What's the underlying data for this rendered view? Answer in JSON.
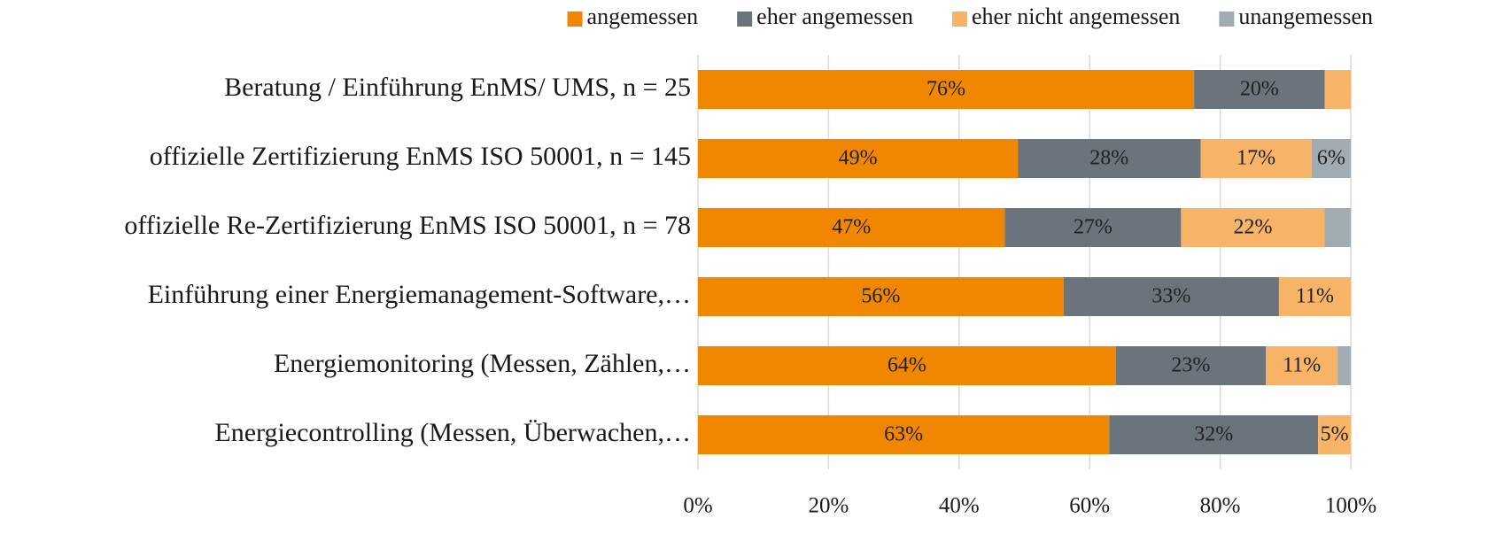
{
  "chart_data": {
    "type": "bar",
    "orientation": "horizontal",
    "stacked": true,
    "categories": [
      "Beratung / Einführung EnMS/ UMS, n = 25",
      "offizielle Zertifizierung EnMS ISO 50001, n = 145",
      "offizielle Re-Zertifizierung EnMS ISO 50001, n = 78",
      "Einführung einer Energiemanagement-Software,…",
      "Energiemonitoring (Messen, Zählen,…",
      "Energiecontrolling (Messen, Überwachen,…"
    ],
    "series": [
      {
        "name": "angemessen",
        "color": "#f18700",
        "values": [
          76,
          49,
          47,
          56,
          64,
          63
        ],
        "value_labels": [
          "76%",
          "49%",
          "47%",
          "56%",
          "64%",
          "63%"
        ]
      },
      {
        "name": "eher angemessen",
        "color": "#6b737c",
        "values": [
          20,
          28,
          27,
          33,
          23,
          32
        ],
        "value_labels": [
          "20%",
          "28%",
          "27%",
          "33%",
          "23%",
          "32%"
        ]
      },
      {
        "name": "eher nicht angemessen",
        "color": "#f7b468",
        "values": [
          4,
          17,
          22,
          11,
          11,
          5
        ],
        "value_labels": [
          null,
          "17%",
          "22%",
          "11%",
          "11%",
          "5%"
        ]
      },
      {
        "name": "unangemessen",
        "color": "#a0abb2",
        "values": [
          0,
          6,
          4,
          0,
          2,
          0
        ],
        "value_labels": [
          null,
          "6%",
          null,
          null,
          null,
          null
        ]
      }
    ],
    "xlim": [
      0,
      100
    ],
    "xticks": [
      {
        "value": 0,
        "label": "0%"
      },
      {
        "value": 20,
        "label": "20%"
      },
      {
        "value": 40,
        "label": "40%"
      },
      {
        "value": 60,
        "label": "60%"
      },
      {
        "value": 80,
        "label": "80%"
      },
      {
        "value": 100,
        "label": "100%"
      }
    ],
    "grid": true,
    "legend": "top-right"
  }
}
